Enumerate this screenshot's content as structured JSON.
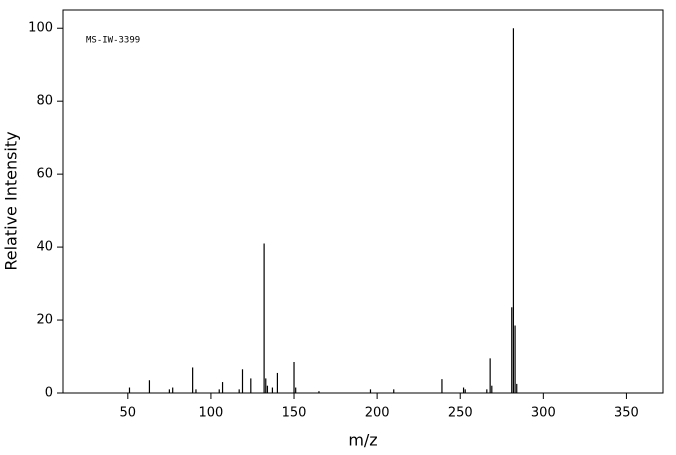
{
  "chart_data": {
    "type": "stem",
    "annotation": "MS-IW-3399",
    "x_label": "m/z",
    "y_label": "Relative Intensity",
    "color": "#000000",
    "x": [
      51,
      63,
      75,
      77,
      89,
      91,
      105,
      107,
      117,
      119,
      124,
      132,
      133,
      134,
      137,
      140,
      150,
      151,
      165,
      196,
      210,
      239,
      252,
      253,
      266,
      268,
      269,
      281,
      282,
      283,
      284
    ],
    "values": [
      1.5,
      3.5,
      1,
      1.5,
      7,
      1,
      1,
      3,
      1,
      6.5,
      4,
      41,
      4,
      2,
      1.5,
      5.5,
      8.5,
      1.5,
      0.5,
      1,
      1,
      3.8,
      1.5,
      1,
      1,
      9.5,
      2,
      23.5,
      100,
      18.5,
      2.5
    ],
    "xlim": [
      11,
      372
    ],
    "ylim": [
      0,
      105
    ],
    "xticks": [
      50,
      100,
      150,
      200,
      250,
      300,
      350
    ],
    "yticks": [
      0,
      20,
      40,
      60,
      80,
      100
    ]
  }
}
